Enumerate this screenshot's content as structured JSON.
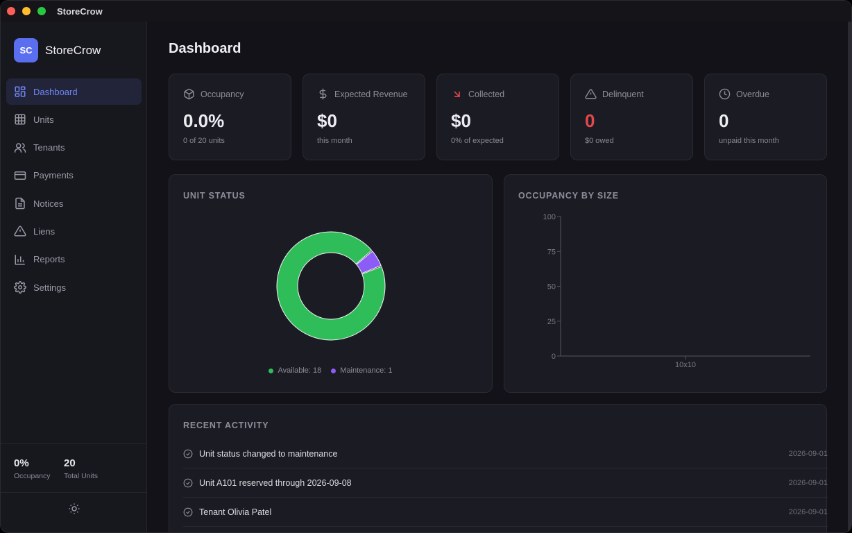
{
  "window": {
    "title": "StoreCrow"
  },
  "brand": {
    "logo_text": "SC",
    "name": "StoreCrow"
  },
  "sidebar": {
    "items": [
      {
        "label": "Dashboard",
        "icon": "dashboard-icon",
        "active": true
      },
      {
        "label": "Units",
        "icon": "grid-icon"
      },
      {
        "label": "Tenants",
        "icon": "users-icon"
      },
      {
        "label": "Payments",
        "icon": "credit-card-icon"
      },
      {
        "label": "Notices",
        "icon": "document-icon"
      },
      {
        "label": "Liens",
        "icon": "warning-icon"
      },
      {
        "label": "Reports",
        "icon": "bar-chart-icon"
      },
      {
        "label": "Settings",
        "icon": "gear-icon"
      }
    ],
    "footer": {
      "occupancy_value": "0%",
      "occupancy_label": "Occupancy",
      "units_value": "20",
      "units_label": "Total Units"
    },
    "theme_icon": "sun-icon"
  },
  "page": {
    "title": "Dashboard"
  },
  "kpis": [
    {
      "label": "Occupancy",
      "value": "0.0%",
      "sub": "0 of 20 units",
      "icon": "box-icon"
    },
    {
      "label": "Expected Revenue",
      "value": "$0",
      "sub": "this month",
      "icon": "dollar-icon"
    },
    {
      "label": "Collected",
      "value": "$0",
      "sub": "0% of expected",
      "icon": "arrow-down-right-icon"
    },
    {
      "label": "Delinquent",
      "value": "0",
      "sub": "$0 owed",
      "icon": "warning-icon",
      "value_color": "#e5484d"
    },
    {
      "label": "Overdue",
      "value": "0",
      "sub": "unpaid this month",
      "icon": "clock-icon"
    }
  ],
  "unit_status": {
    "title": "UNIT STATUS",
    "legend": [
      "Available: 18",
      "Maintenance: 1"
    ]
  },
  "occupancy_by_size": {
    "title": "OCCUPANCY BY SIZE"
  },
  "chart_data": [
    {
      "type": "pie",
      "title": "UNIT STATUS",
      "donut": true,
      "categories": [
        "Available",
        "Maintenance"
      ],
      "values": [
        18,
        1
      ],
      "colors": [
        "#2ebd59",
        "#8b5cf6"
      ],
      "legend_position": "bottom"
    },
    {
      "type": "bar",
      "title": "OCCUPANCY BY SIZE",
      "categories": [
        "10x10"
      ],
      "values": [
        0
      ],
      "ylim": [
        0,
        100
      ],
      "yticks": [
        "0",
        "25",
        "50",
        "75",
        "100"
      ],
      "grid": false
    }
  ],
  "recent_activity": {
    "title": "RECENT ACTIVITY",
    "items": [
      {
        "text": "Unit status changed to maintenance",
        "date": "2026-09-01"
      },
      {
        "text": "Unit A101 reserved through 2026-09-08",
        "date": "2026-09-01"
      },
      {
        "text": "Tenant Olivia Patel",
        "date": "2026-09-01"
      }
    ]
  }
}
